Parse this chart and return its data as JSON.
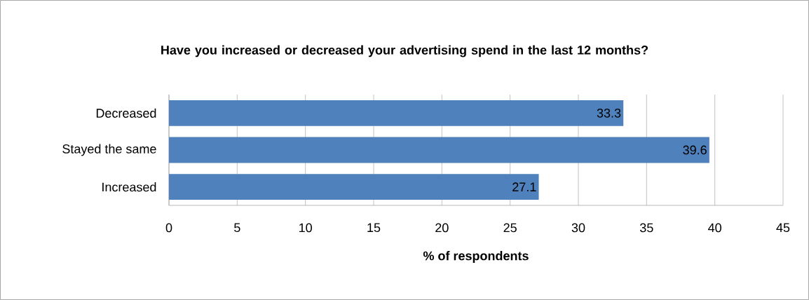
{
  "chart_data": {
    "type": "bar",
    "orientation": "horizontal",
    "title": "Have you increased or decreased your advertising spend in the last 12 months?",
    "xlabel": "% of respondents",
    "categories": [
      "Decreased",
      "Stayed the same",
      "Increased"
    ],
    "values": [
      33.3,
      39.6,
      27.1
    ],
    "color": "#4f81bd",
    "xlim": [
      0,
      45
    ],
    "xticks": [
      0,
      5,
      10,
      15,
      20,
      25,
      30,
      35,
      40,
      45
    ],
    "grid": "x",
    "data_labels": true
  }
}
